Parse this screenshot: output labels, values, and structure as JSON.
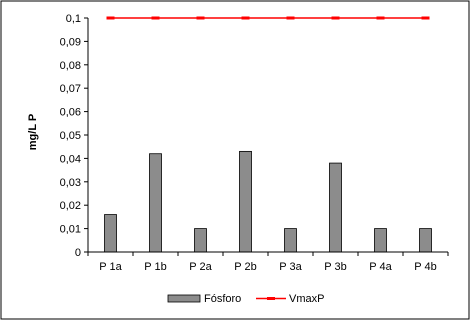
{
  "chart_data": {
    "type": "bar",
    "title": "",
    "xlabel": "",
    "ylabel": "mg/L P",
    "categories": [
      "P 1a",
      "P 1b",
      "P 2a",
      "P 2b",
      "P 3a",
      "P 3b",
      "P 4a",
      "P 4b"
    ],
    "ylim": [
      0,
      0.1
    ],
    "yticks": [
      "0",
      "0,01",
      "0,02",
      "0,03",
      "0,04",
      "0,05",
      "0,06",
      "0,07",
      "0,08",
      "0,09",
      "0,1"
    ],
    "grid": false,
    "legend_position": "bottom",
    "series": [
      {
        "name": "Fósforo",
        "kind": "bar",
        "color": "#8c8c8c",
        "values": [
          0.016,
          0.042,
          0.01,
          0.043,
          0.01,
          0.038,
          0.01,
          0.01
        ]
      },
      {
        "name": "VmaxP",
        "kind": "line",
        "color": "#ff0000",
        "values": [
          0.1,
          0.1,
          0.1,
          0.1,
          0.1,
          0.1,
          0.1,
          0.1
        ]
      }
    ]
  }
}
